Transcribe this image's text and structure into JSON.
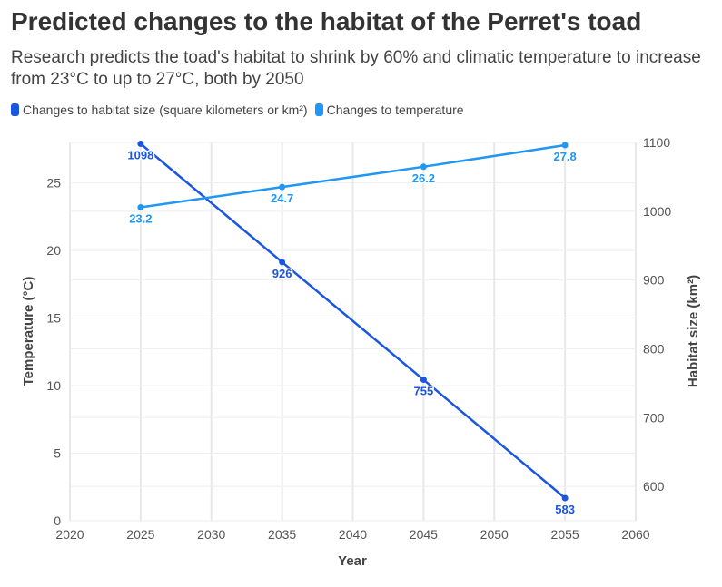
{
  "title": "Predicted changes to the habitat of the Perret's toad",
  "subtitle": "Research predicts the toad's habitat to shrink by 60% and climatic temperature to increase from 23°C to up to 27°C, both by 2050",
  "chart_data": {
    "type": "line",
    "title": "Predicted changes to the habitat of the Perret's toad",
    "xlabel": "Year",
    "ylabel": "Temperature (°C)",
    "y2label": "Habitat size (km²)",
    "xlim": [
      2020,
      2060
    ],
    "xticks": [
      2020,
      2025,
      2030,
      2035,
      2040,
      2045,
      2050,
      2055,
      2060
    ],
    "ylim": [
      0,
      28
    ],
    "yticks": [
      0,
      5,
      10,
      15,
      20,
      25
    ],
    "y2lim": [
      550,
      1100
    ],
    "y2ticks": [
      600,
      700,
      800,
      900,
      1000,
      1100
    ],
    "grid": true,
    "legend": "top-left",
    "series": [
      {
        "name": "Changes to habitat size (square kilometers or km²)",
        "axis": "right",
        "color": "#1a56e0",
        "x": [
          2025,
          2035,
          2045,
          2055
        ],
        "values": [
          1098,
          926,
          755,
          583
        ],
        "labels": [
          "1098",
          "926",
          "755",
          "583"
        ]
      },
      {
        "name": "Changes to temperature",
        "axis": "left",
        "color": "#2196f3",
        "x": [
          2025,
          2035,
          2045,
          2055
        ],
        "values": [
          23.2,
          24.7,
          26.2,
          27.8
        ],
        "labels": [
          "23.2",
          "24.7",
          "26.2",
          "27.8"
        ]
      }
    ]
  }
}
